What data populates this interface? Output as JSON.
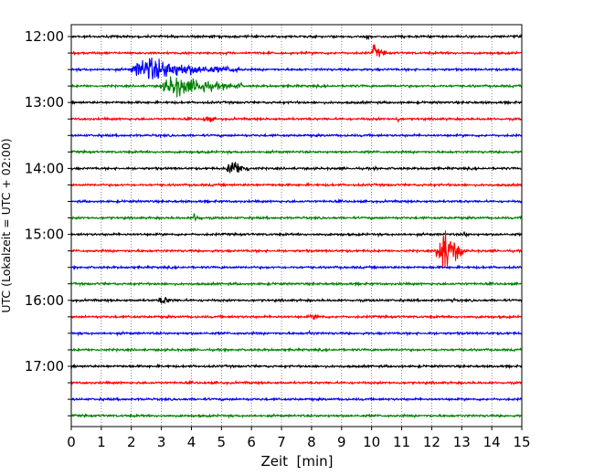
{
  "chart_data": {
    "type": "line",
    "xlabel": "Zeit  [min]",
    "ylabel": "UTC (Lokalzeit = UTC + 02:00)",
    "xlim": [
      0,
      15
    ],
    "x_ticks": [
      0,
      1,
      2,
      3,
      4,
      5,
      6,
      7,
      8,
      9,
      10,
      11,
      12,
      13,
      14,
      15
    ],
    "grid": "vertical dotted",
    "y_tick_labels": [
      "12:00",
      "13:00",
      "14:00",
      "15:00",
      "16:00",
      "17:00"
    ],
    "row_interval_min": 15,
    "row_colors": [
      "#000000",
      "#ff0000",
      "#0000ff",
      "#008000"
    ],
    "rows": [
      {
        "start": "12:00",
        "color": "black",
        "events": [
          {
            "t": 9.8,
            "amp": 0.25,
            "dur": 0.4
          }
        ]
      },
      {
        "start": "12:15",
        "color": "red",
        "events": [
          {
            "t": 10.0,
            "amp": 0.7,
            "dur": 0.5
          }
        ]
      },
      {
        "start": "12:30",
        "color": "blue",
        "events": [
          {
            "t": 2.0,
            "amp": 1.0,
            "dur": 3.6
          },
          {
            "t": 2.6,
            "amp": 1.6,
            "dur": 0.1
          }
        ]
      },
      {
        "start": "12:45",
        "color": "green",
        "events": [
          {
            "t": 3.0,
            "amp": 0.9,
            "dur": 2.7
          },
          {
            "t": 4.4,
            "amp": 1.3,
            "dur": 0.1
          }
        ]
      },
      {
        "start": "13:00",
        "color": "black",
        "events": []
      },
      {
        "start": "13:15",
        "color": "red",
        "events": [
          {
            "t": 4.4,
            "amp": 0.4,
            "dur": 0.5
          },
          {
            "t": 10.8,
            "amp": 0.3,
            "dur": 0.3
          }
        ]
      },
      {
        "start": "13:30",
        "color": "blue",
        "events": []
      },
      {
        "start": "13:45",
        "color": "green",
        "events": []
      },
      {
        "start": "14:00",
        "color": "black",
        "events": [
          {
            "t": 5.2,
            "amp": 0.9,
            "dur": 0.8
          },
          {
            "t": 10.1,
            "amp": 0.2,
            "dur": 0.2
          }
        ]
      },
      {
        "start": "14:15",
        "color": "red",
        "events": []
      },
      {
        "start": "14:30",
        "color": "blue",
        "events": []
      },
      {
        "start": "14:45",
        "color": "green",
        "events": [
          {
            "t": 4.0,
            "amp": 0.35,
            "dur": 0.6
          }
        ]
      },
      {
        "start": "15:00",
        "color": "black",
        "events": [
          {
            "t": 13.0,
            "amp": 0.3,
            "dur": 0.4
          }
        ]
      },
      {
        "start": "15:15",
        "color": "red",
        "events": [
          {
            "t": 12.2,
            "amp": 2.2,
            "dur": 0.9
          }
        ]
      },
      {
        "start": "15:30",
        "color": "blue",
        "events": []
      },
      {
        "start": "15:45",
        "color": "green",
        "events": []
      },
      {
        "start": "16:00",
        "color": "black",
        "events": [
          {
            "t": 2.9,
            "amp": 0.4,
            "dur": 0.7
          },
          {
            "t": 12.6,
            "amp": 0.2,
            "dur": 0.4
          }
        ]
      },
      {
        "start": "16:15",
        "color": "red",
        "events": [
          {
            "t": 7.8,
            "amp": 0.2,
            "dur": 1.5
          }
        ]
      },
      {
        "start": "16:30",
        "color": "blue",
        "events": [
          {
            "t": 7.9,
            "amp": 0.3,
            "dur": 0.3
          }
        ]
      },
      {
        "start": "16:45",
        "color": "green",
        "events": []
      },
      {
        "start": "17:00",
        "color": "black",
        "events": []
      },
      {
        "start": "17:15",
        "color": "red",
        "events": []
      },
      {
        "start": "17:30",
        "color": "blue",
        "events": []
      },
      {
        "start": "17:45",
        "color": "green",
        "events": []
      }
    ]
  }
}
